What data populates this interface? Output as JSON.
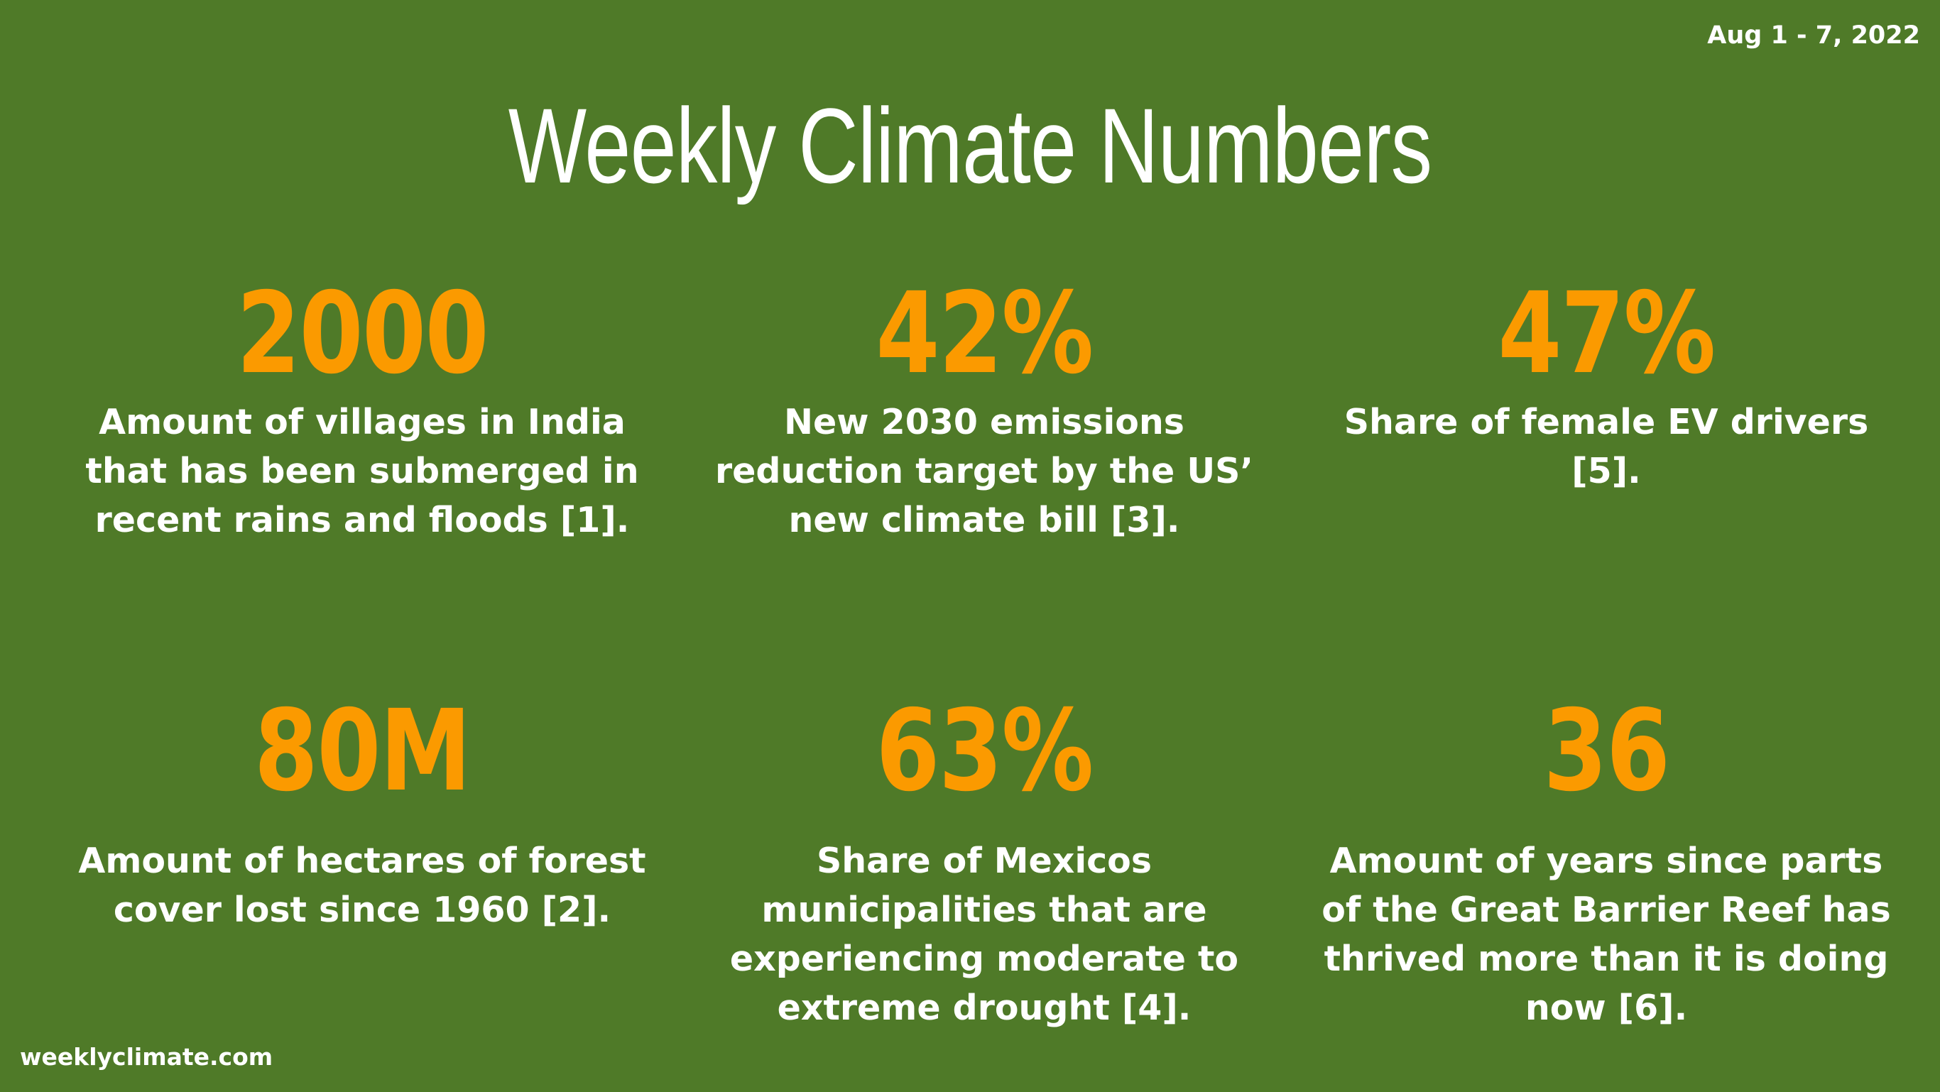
{
  "date_range": "Aug 1 - 7, 2022",
  "title": "Weekly Climate Numbers",
  "stats": [
    {
      "number": "2000",
      "description": "Amount of villages in India that has been submerged in recent rains and floods [1]."
    },
    {
      "number": "42%",
      "description": "New 2030 emissions reduction target by the US’ new climate bill [3]."
    },
    {
      "number": "47%",
      "description": "Share of female EV drivers [5]."
    },
    {
      "number": "80M",
      "description": "Amount of hectares of forest cover lost since 1960 [2]."
    },
    {
      "number": "63%",
      "description": "Share of Mexicos municipalities that are experiencing moderate to extreme drought [4]."
    },
    {
      "number": "36",
      "description": "Amount of years since parts of the Great Barrier Reef has thrived more than it is doing now [6]."
    }
  ],
  "footer": "weeklyclimate.com",
  "colors": {
    "background": "#4f7a28",
    "number": "#fb9a00",
    "text": "#ffffff"
  }
}
